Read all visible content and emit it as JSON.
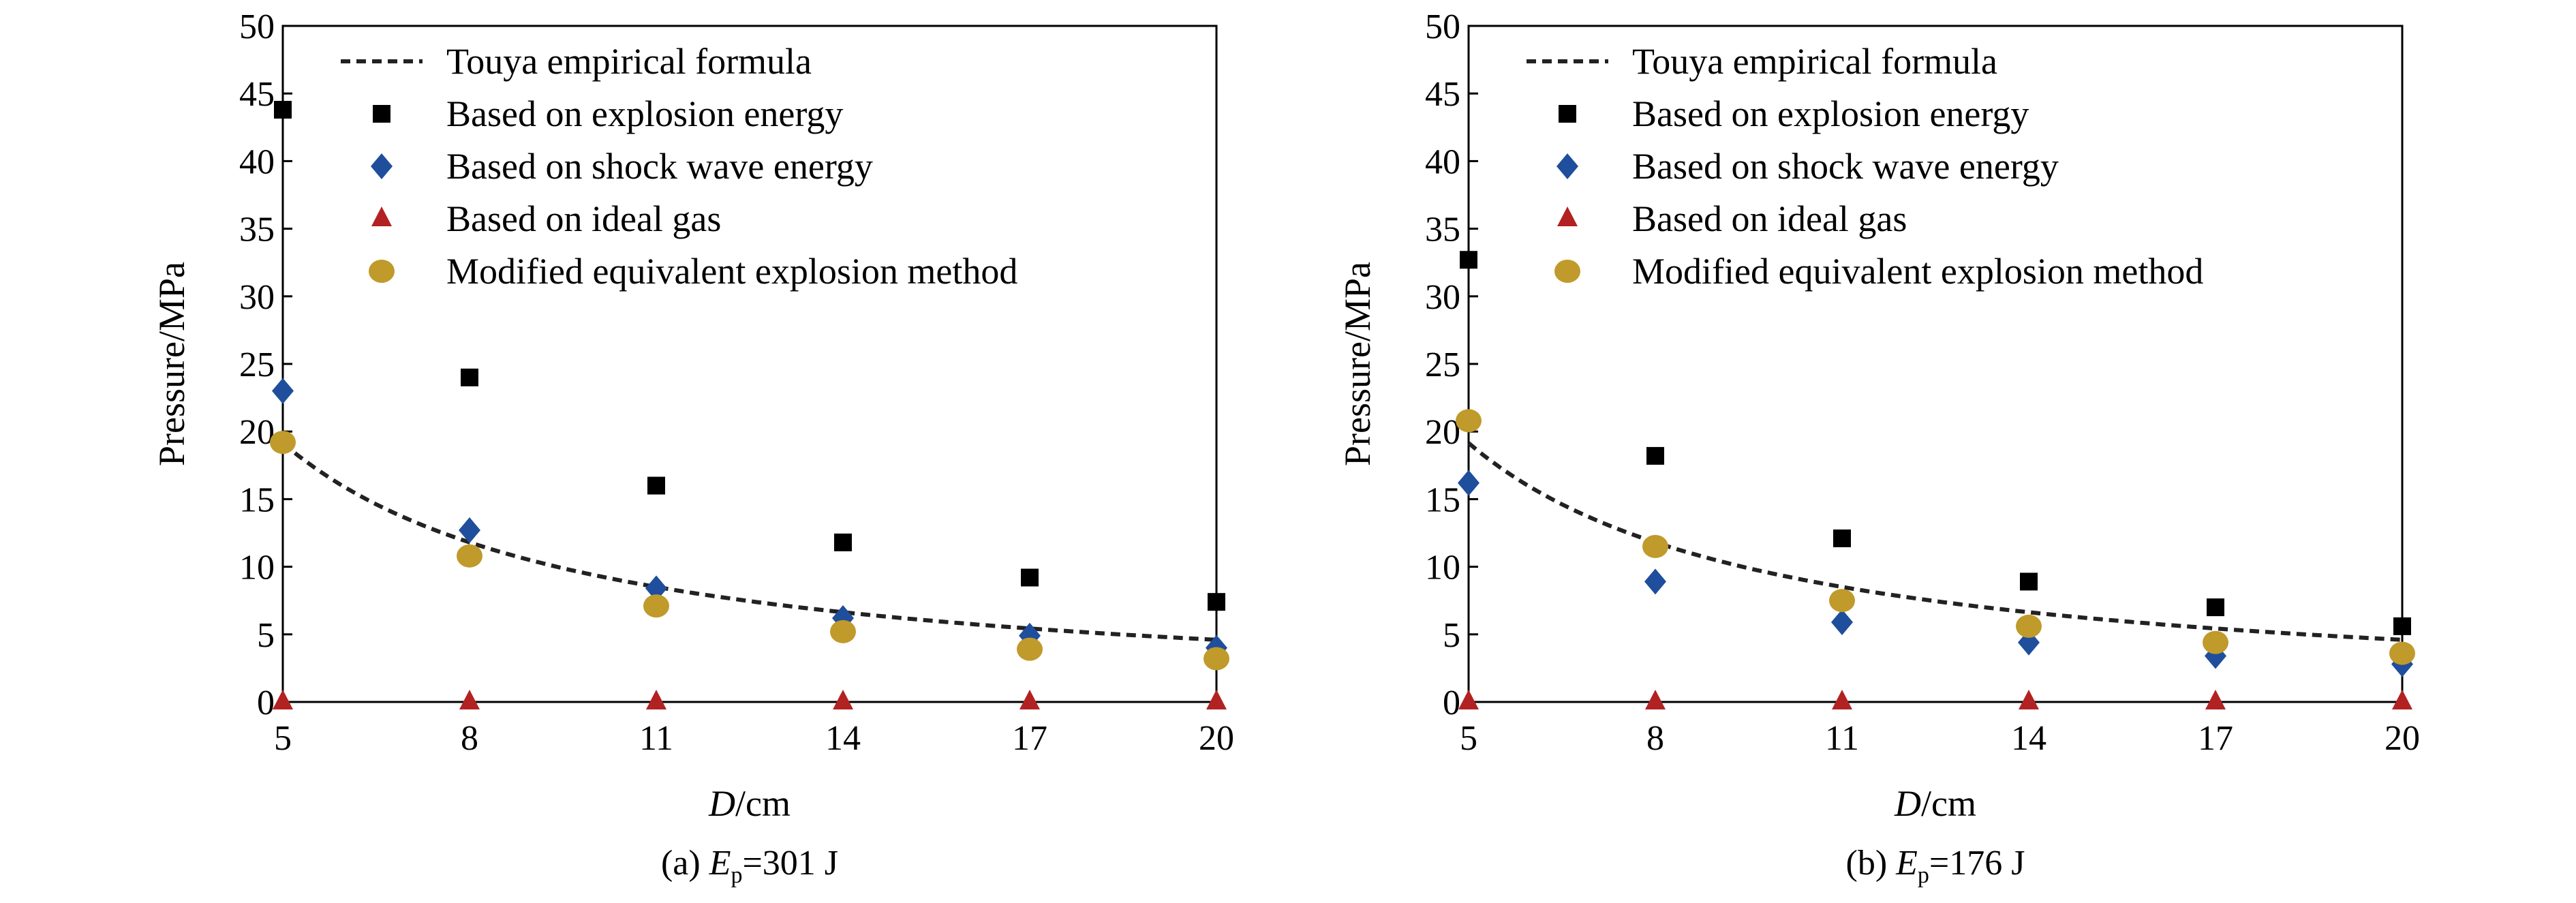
{
  "chart_data": [
    {
      "type": "scatter",
      "caption_prefix": "(a) ",
      "caption_var": "E",
      "caption_sub": "p",
      "caption_value": "=301 J",
      "xlabel_var": "D",
      "xlabel_unit": "/cm",
      "ylabel": "Pressure/MPa",
      "xlim": [
        5,
        20
      ],
      "ylim": [
        0,
        50
      ],
      "xticks": [
        5,
        8,
        11,
        14,
        17,
        20
      ],
      "yticks": [
        0,
        5,
        10,
        15,
        20,
        25,
        30,
        35,
        40,
        45,
        50
      ],
      "x": [
        5,
        8,
        11,
        14,
        17,
        20
      ],
      "legend_position": "top",
      "series": [
        {
          "name": "Touya empirical formula",
          "kind": "curve",
          "color": "#222222",
          "values": [
            19.0,
            11.9,
            8.6,
            6.6,
            5.4,
            4.6
          ]
        },
        {
          "name": "Based on explosion energy",
          "kind": "square",
          "color": "#000000",
          "values": [
            43.8,
            24.0,
            16.0,
            11.8,
            9.2,
            7.4
          ]
        },
        {
          "name": "Based on shock wave energy",
          "kind": "diamond",
          "color": "#1f4e9c",
          "values": [
            23.0,
            12.7,
            8.4,
            6.2,
            4.9,
            4.0
          ]
        },
        {
          "name": "Based on ideal gas",
          "kind": "triangle",
          "color": "#b22222",
          "values": [
            0,
            0,
            0,
            0,
            0,
            0
          ]
        },
        {
          "name": "Modified equivalent explosion method",
          "kind": "circle",
          "color": "#c09a2a",
          "values": [
            19.2,
            10.8,
            7.1,
            5.2,
            3.9,
            3.2
          ]
        }
      ]
    },
    {
      "type": "scatter",
      "caption_prefix": "(b) ",
      "caption_var": "E",
      "caption_sub": "p",
      "caption_value": "=176 J",
      "xlabel_var": "D",
      "xlabel_unit": "/cm",
      "ylabel": "Pressure/MPa",
      "xlim": [
        5,
        20
      ],
      "ylim": [
        0,
        50
      ],
      "xticks": [
        5,
        8,
        11,
        14,
        17,
        20
      ],
      "yticks": [
        0,
        5,
        10,
        15,
        20,
        25,
        30,
        35,
        40,
        45,
        50
      ],
      "x": [
        5,
        8,
        11,
        14,
        17,
        20
      ],
      "legend_position": "top",
      "series": [
        {
          "name": "Touya empirical formula",
          "kind": "curve",
          "color": "#222222",
          "values": [
            19.0,
            11.9,
            8.6,
            6.6,
            5.4,
            4.6
          ]
        },
        {
          "name": "Based on explosion energy",
          "kind": "square",
          "color": "#000000",
          "values": [
            32.7,
            18.2,
            12.1,
            8.9,
            7.0,
            5.6
          ]
        },
        {
          "name": "Based on shock wave energy",
          "kind": "diamond",
          "color": "#1f4e9c",
          "values": [
            16.2,
            8.9,
            5.9,
            4.4,
            3.4,
            2.8
          ]
        },
        {
          "name": "Based on ideal gas",
          "kind": "triangle",
          "color": "#b22222",
          "values": [
            0,
            0,
            0,
            0,
            0,
            0
          ]
        },
        {
          "name": "Modified equivalent explosion method",
          "kind": "circle",
          "color": "#c09a2a",
          "values": [
            20.8,
            11.5,
            7.5,
            5.6,
            4.4,
            3.6
          ]
        }
      ]
    }
  ]
}
